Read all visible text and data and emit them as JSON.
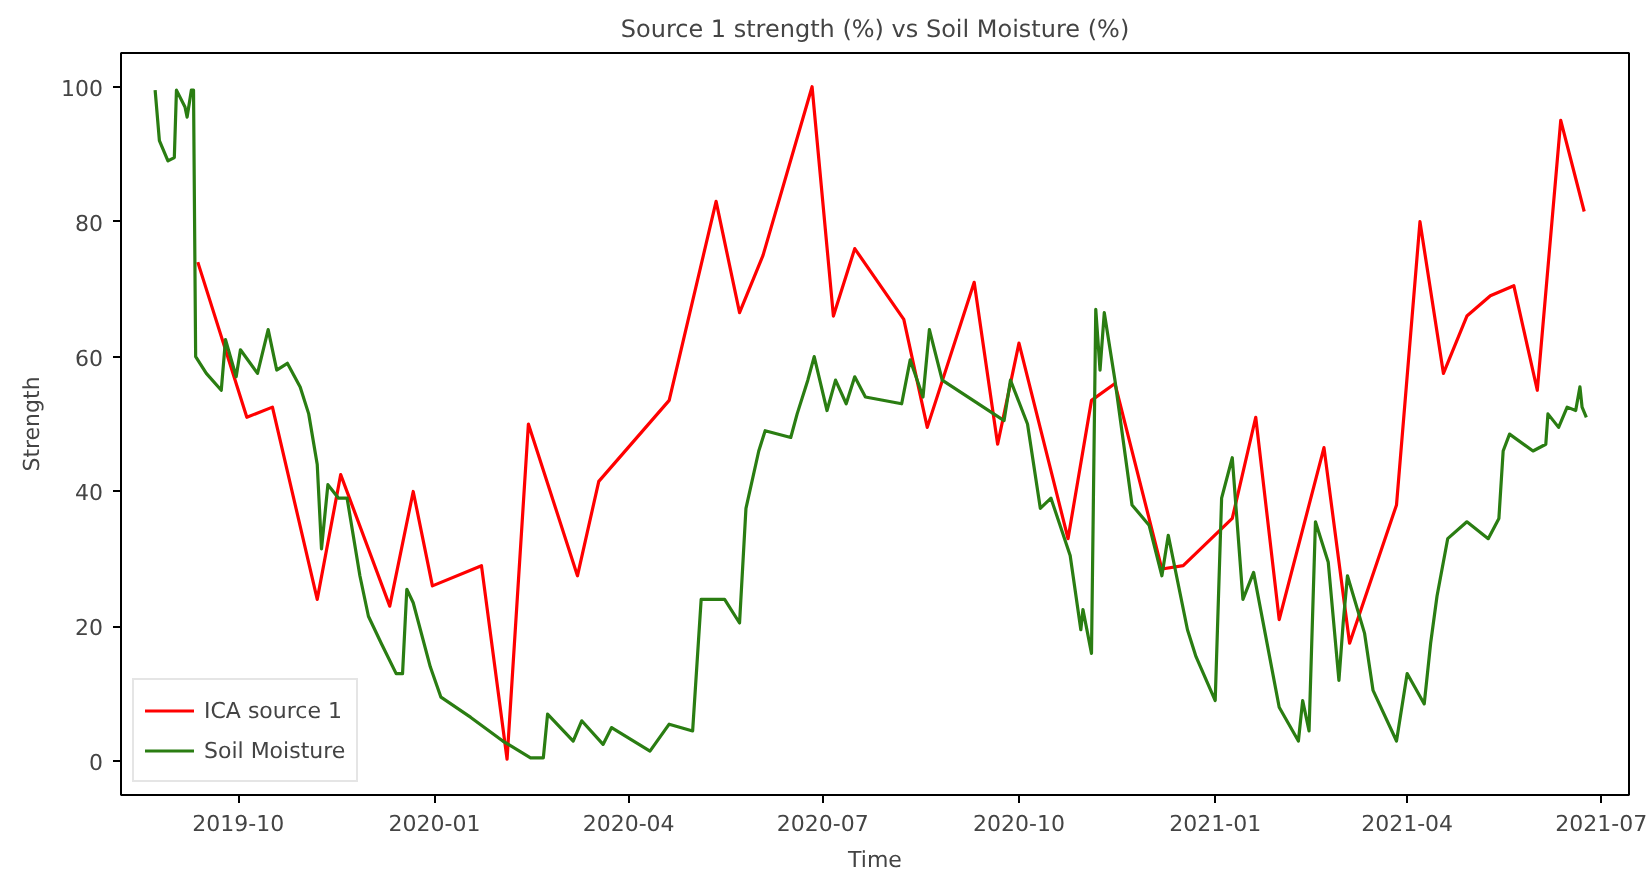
{
  "chart_data": {
    "type": "line",
    "title": "Source 1 strength (%) vs Soil Moisture (%)",
    "xlabel": "Time",
    "ylabel": "Strength",
    "xlim": [
      "2019-08-07",
      "2021-07-14"
    ],
    "xticks": [
      "2019-10",
      "2020-01",
      "2020-04",
      "2020-07",
      "2020-10",
      "2021-01",
      "2021-04",
      "2021-07"
    ],
    "ylim": [
      -5,
      105
    ],
    "yticks": [
      0,
      20,
      40,
      60,
      80,
      100
    ],
    "grid": false,
    "legend": "bottom left",
    "line_style": "solid",
    "series": [
      {
        "name": "ICA source 1",
        "color": "#ff0000",
        "x": [
          "2019-09-12",
          "2019-10-05",
          "2019-10-17",
          "2019-11-07",
          "2019-11-18",
          "2019-12-11",
          "2019-12-22",
          "2019-12-31",
          "2020-01-23",
          "2020-02-04",
          "2020-02-14",
          "2020-03-08",
          "2020-03-18",
          "2020-04-20",
          "2020-05-12",
          "2020-05-23",
          "2020-06-03",
          "2020-06-26",
          "2020-07-06",
          "2020-07-16",
          "2020-08-08",
          "2020-08-19",
          "2020-09-10",
          "2020-09-21",
          "2020-10-01",
          "2020-10-24",
          "2020-11-04",
          "2020-11-15",
          "2020-12-07",
          "2020-12-17",
          "2021-01-09",
          "2021-01-20",
          "2021-01-31",
          "2021-02-21",
          "2021-03-05",
          "2021-03-27",
          "2021-04-07",
          "2021-04-18",
          "2021-04-29",
          "2021-05-10",
          "2021-05-21",
          "2021-06-01",
          "2021-06-12",
          "2021-06-23"
        ],
        "values": [
          74,
          51,
          52.5,
          24,
          42.5,
          23,
          40,
          26,
          29,
          0.3,
          50,
          27.5,
          41.5,
          53.5,
          83,
          66.5,
          75,
          100,
          66,
          76,
          65.5,
          49.5,
          71,
          47,
          62,
          33,
          53.5,
          56,
          28.5,
          29,
          36,
          51,
          21,
          46.5,
          17.5,
          38,
          80,
          57.5,
          66,
          69,
          70.5,
          55,
          95,
          81.5
        ]
      },
      {
        "name": "Soil Moisture",
        "color": "#2a7d12",
        "x": [
          "2019-08-23",
          "2019-08-25",
          "2019-08-29",
          "2019-09-01",
          "2019-09-02",
          "2019-09-06",
          "2019-09-07",
          "2019-09-09",
          "2019-09-10",
          "2019-09-11",
          "2019-09-16",
          "2019-09-23",
          "2019-09-25",
          "2019-09-30",
          "2019-10-02",
          "2019-10-10",
          "2019-10-15",
          "2019-10-19",
          "2019-10-24",
          "2019-10-30",
          "2019-11-03",
          "2019-11-07",
          "2019-11-09",
          "2019-11-12",
          "2019-11-17",
          "2019-11-21",
          "2019-11-27",
          "2019-12-01",
          "2019-12-07",
          "2019-12-14",
          "2019-12-17",
          "2019-12-19",
          "2019-12-22",
          "2019-12-30",
          "2020-01-04",
          "2020-01-18",
          "2020-02-02",
          "2020-02-15",
          "2020-02-21",
          "2020-02-23",
          "2020-03-06",
          "2020-03-10",
          "2020-03-20",
          "2020-03-24",
          "2020-04-11",
          "2020-04-20",
          "2020-05-01",
          "2020-05-05",
          "2020-05-16",
          "2020-05-23",
          "2020-05-26",
          "2020-06-01",
          "2020-06-04",
          "2020-06-16",
          "2020-06-19",
          "2020-06-24",
          "2020-06-27",
          "2020-07-03",
          "2020-07-07",
          "2020-07-12",
          "2020-07-16",
          "2020-07-21",
          "2020-08-07",
          "2020-08-11",
          "2020-08-17",
          "2020-08-20",
          "2020-08-26",
          "2020-09-24",
          "2020-09-27",
          "2020-10-05",
          "2020-10-11",
          "2020-10-16",
          "2020-10-25",
          "2020-10-30",
          "2020-10-31",
          "2020-11-04",
          "2020-11-06",
          "2020-11-08",
          "2020-11-10",
          "2020-11-15",
          "2020-11-23",
          "2020-12-01",
          "2020-12-07",
          "2020-12-10",
          "2020-12-19",
          "2020-12-23",
          "2021-01-01",
          "2021-01-04",
          "2021-01-09",
          "2021-01-14",
          "2021-01-19",
          "2021-01-31",
          "2021-02-09",
          "2021-02-11",
          "2021-02-14",
          "2021-02-17",
          "2021-02-23",
          "2021-02-28",
          "2021-03-02",
          "2021-03-04",
          "2021-03-12",
          "2021-03-16",
          "2021-03-27",
          "2021-04-01",
          "2021-04-09",
          "2021-04-12",
          "2021-04-15",
          "2021-04-20",
          "2021-04-29",
          "2021-05-09",
          "2021-05-14",
          "2021-05-16",
          "2021-05-19",
          "2021-05-30",
          "2021-06-05",
          "2021-06-06",
          "2021-06-11",
          "2021-06-15",
          "2021-06-19",
          "2021-06-21",
          "2021-06-22",
          "2021-06-24"
        ],
        "values": [
          99.5,
          92,
          89,
          89.5,
          99.5,
          97,
          95.5,
          99.5,
          99.5,
          60,
          57.5,
          55,
          62.5,
          57,
          61,
          57.5,
          64,
          58,
          59,
          55.5,
          51.5,
          44,
          31.5,
          41,
          39,
          39,
          27.5,
          21.5,
          17.5,
          13,
          13,
          25.5,
          23.5,
          14,
          9.5,
          6.5,
          3,
          0.5,
          0.5,
          7,
          3,
          6,
          2.5,
          5,
          1.5,
          5.5,
          4.5,
          24,
          24,
          20.5,
          37.5,
          46,
          49,
          48,
          51.5,
          56.5,
          60,
          52,
          56.5,
          53,
          57,
          54,
          53,
          59.5,
          54,
          64,
          56.5,
          50.5,
          56.5,
          50,
          37.5,
          39,
          30.5,
          19.5,
          22.5,
          16,
          67,
          58,
          66.5,
          56.5,
          38,
          35,
          27.5,
          33.5,
          19.5,
          15.5,
          9,
          39,
          45,
          24,
          28,
          8,
          3,
          9,
          4.5,
          35.5,
          29.5,
          12,
          20.5,
          27.5,
          19,
          10.5,
          3,
          13,
          8.5,
          17.5,
          24.5,
          33,
          35.5,
          33,
          36,
          46,
          48.5,
          46,
          47,
          51.5,
          49.5,
          52.5,
          52,
          55.5,
          52.5,
          51
        ]
      }
    ]
  }
}
